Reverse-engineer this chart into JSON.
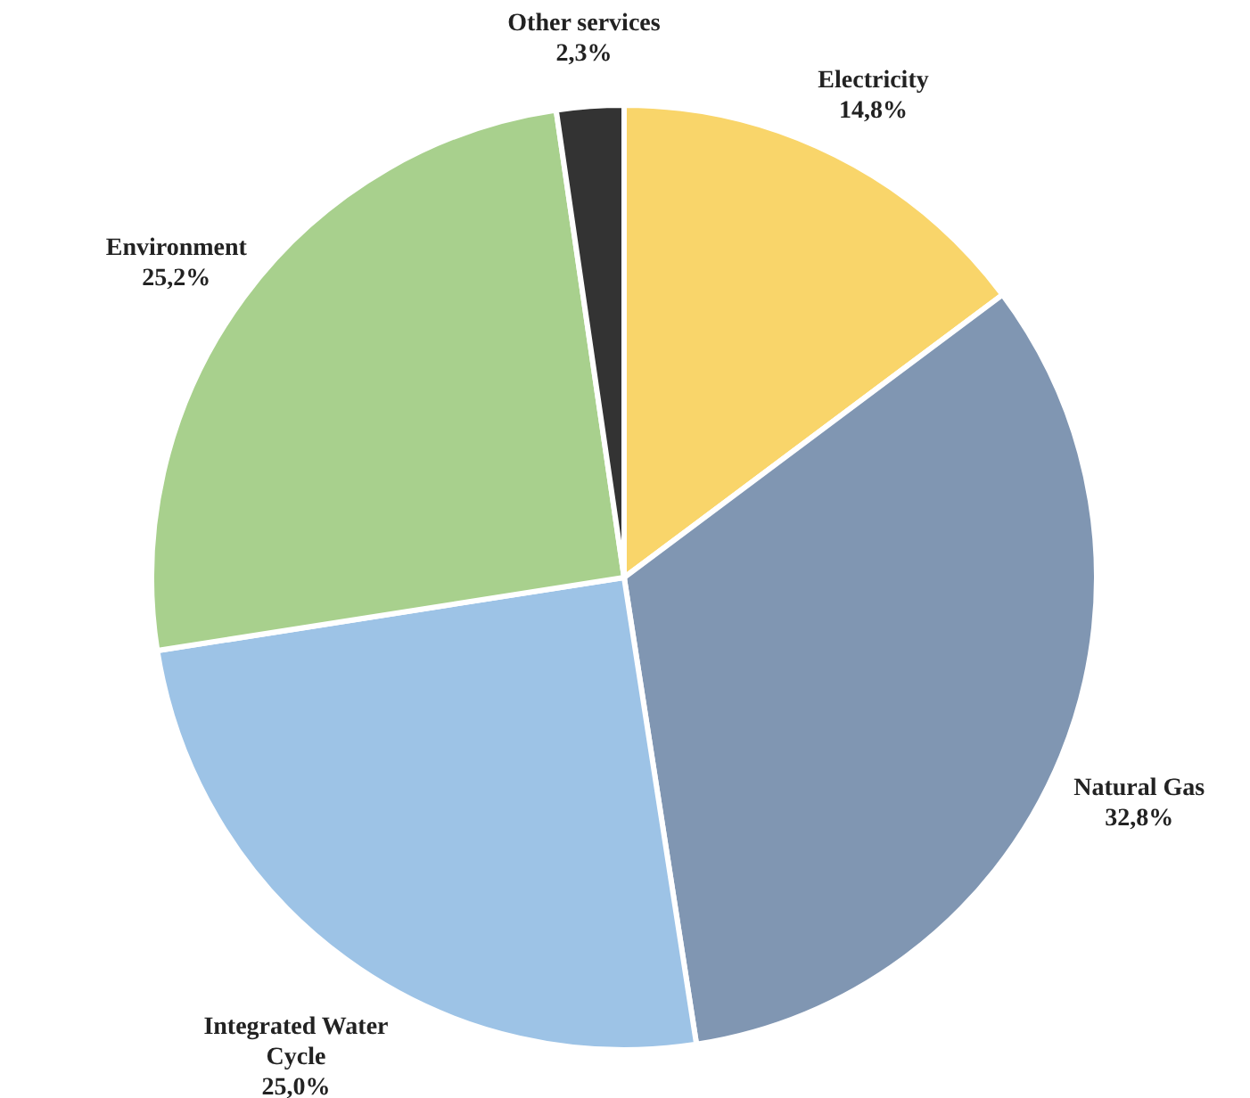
{
  "chart_data": {
    "type": "pie",
    "categories": [
      "Electricity",
      "Natural Gas",
      "Integrated Water Cycle",
      "Environment",
      "Other services"
    ],
    "values": [
      14.8,
      32.8,
      25.0,
      25.2,
      2.3
    ],
    "colors": [
      "#f9d56a",
      "#8096b2",
      "#9dc3e6",
      "#a8d08d",
      "#333333"
    ],
    "value_labels": [
      "14,8%",
      "32,8%",
      "25,0%",
      "25,2%",
      "2,3%"
    ]
  }
}
